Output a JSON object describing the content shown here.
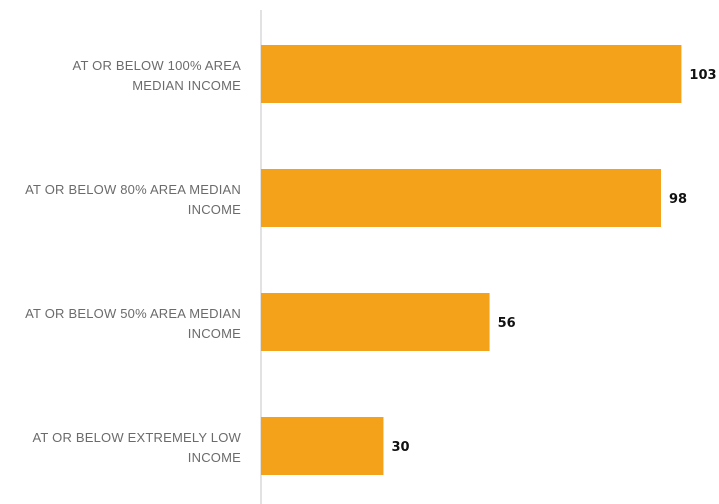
{
  "chart_data": {
    "type": "bar",
    "orientation": "horizontal",
    "categories": [
      [
        "AT OR BELOW 100% AREA",
        "MEDIAN INCOME"
      ],
      [
        "AT OR BELOW 80% AREA MEDIAN",
        "INCOME"
      ],
      [
        "AT OR BELOW 50% AREA MEDIAN",
        "INCOME"
      ],
      [
        "AT OR BELOW EXTREMELY LOW",
        "INCOME"
      ]
    ],
    "values": [
      103,
      98,
      56,
      30
    ],
    "data_labels": [
      "103",
      "98",
      "56",
      "30"
    ],
    "title": "",
    "xlabel": "",
    "ylabel": "",
    "xlim": [
      0,
      110
    ],
    "grid": false,
    "legend": "none",
    "bar_color": "#f5a21b",
    "axis_color": "#d9d9d9"
  }
}
